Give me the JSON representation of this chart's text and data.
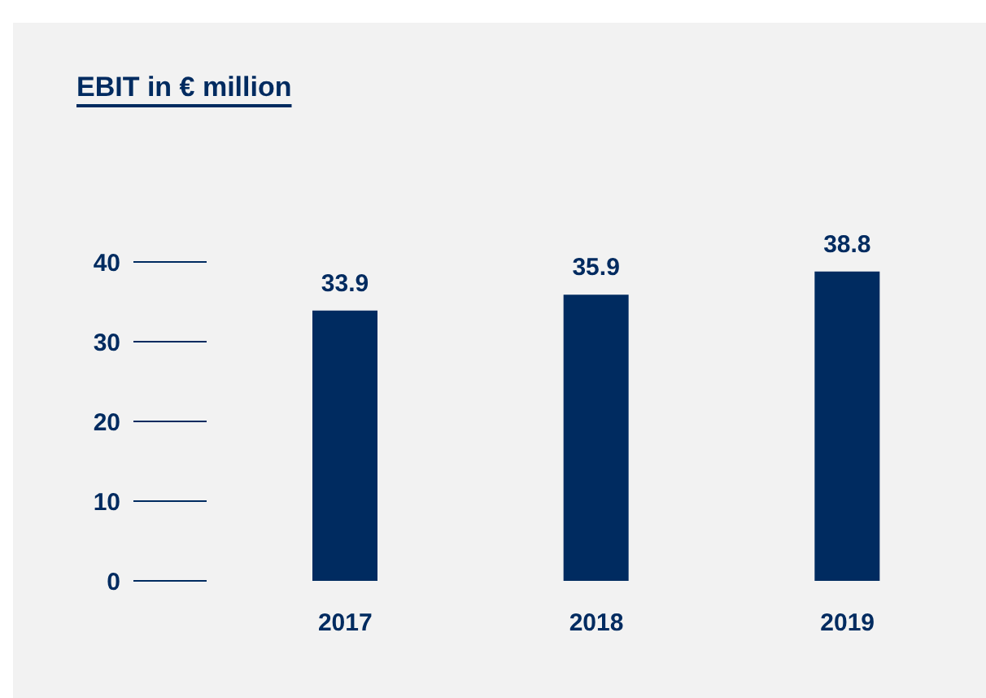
{
  "chart_data": {
    "type": "bar",
    "title": "EBIT in € million",
    "categories": [
      "2017",
      "2018",
      "2019"
    ],
    "values": [
      33.9,
      35.9,
      38.8
    ],
    "color": "#002b60",
    "ylim": [
      0,
      40
    ],
    "yticks": [
      0,
      10,
      20,
      30,
      40
    ],
    "data_labels": true
  }
}
